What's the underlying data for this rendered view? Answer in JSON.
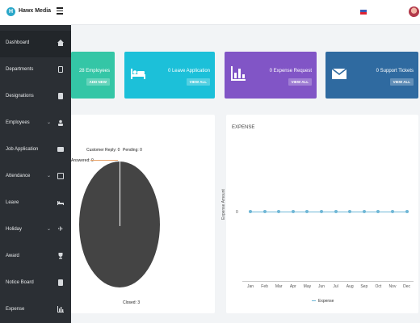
{
  "app": {
    "brand": "Hawx Media",
    "logo_letter": "H"
  },
  "sidebar": {
    "items": [
      {
        "label": "Dashboard",
        "icon": "home-icon",
        "has_chevron": false,
        "active": true
      },
      {
        "label": "Departments",
        "icon": "building-icon",
        "has_chevron": false
      },
      {
        "label": "Designations",
        "icon": "id-card-icon",
        "has_chevron": false
      },
      {
        "label": "Employees",
        "icon": "users-icon",
        "has_chevron": true
      },
      {
        "label": "Job Application",
        "icon": "briefcase-icon",
        "has_chevron": false
      },
      {
        "label": "Attendance",
        "icon": "calendar-icon",
        "has_chevron": true
      },
      {
        "label": "Leave",
        "icon": "bed-icon",
        "has_chevron": false
      },
      {
        "label": "Holiday",
        "icon": "plane-icon",
        "has_chevron": true
      },
      {
        "label": "Award",
        "icon": "trophy-icon",
        "has_chevron": false
      },
      {
        "label": "Notice Board",
        "icon": "notice-icon",
        "has_chevron": false
      },
      {
        "label": "Expense",
        "icon": "bar-chart-icon",
        "has_chevron": false
      }
    ]
  },
  "cards": [
    {
      "title": "28 Employees",
      "button": "ADD NEW",
      "color": "#34c6a6",
      "icon": "users-icon"
    },
    {
      "title": "0 Leave Application",
      "button": "VIEW ALL",
      "color": "#1cc0d9",
      "icon": "bed-icon"
    },
    {
      "title": "0 Expense Request",
      "button": "VIEW ALL",
      "color": "#8155c6",
      "icon": "bar-chart-icon"
    },
    {
      "title": "0 Support Tickets",
      "button": "VIEW ALL",
      "color": "#2f6aa0",
      "icon": "envelope-icon"
    }
  ],
  "chart_data": [
    {
      "type": "pie",
      "title": "",
      "slices": [
        {
          "label": "Customer Reply",
          "value": 0
        },
        {
          "label": "Pending",
          "value": 0
        },
        {
          "label": "Answered",
          "value": 0
        },
        {
          "label": "Closed",
          "value": 3
        }
      ],
      "labels_text": {
        "customer_reply": "Customer Reply: 0",
        "pending": "Pending: 0",
        "answered": "Answered: 0",
        "closed": "Closed: 3"
      },
      "colors": {
        "closed": "#444444"
      }
    },
    {
      "type": "line",
      "title": "EXPENSE",
      "ylabel": "Expense Amount",
      "xlabel": "",
      "categories": [
        "Jan",
        "Feb",
        "Mar",
        "Apr",
        "May",
        "Jun",
        "Jul",
        "Aug",
        "Sep",
        "Oct",
        "Nov",
        "Dec"
      ],
      "series": [
        {
          "name": "Expense",
          "values": [
            0,
            0,
            0,
            0,
            0,
            0,
            0,
            0,
            0,
            0,
            0,
            0
          ],
          "color": "#6fb7d6"
        }
      ],
      "y_tick": "0",
      "legend": "bottom"
    }
  ]
}
